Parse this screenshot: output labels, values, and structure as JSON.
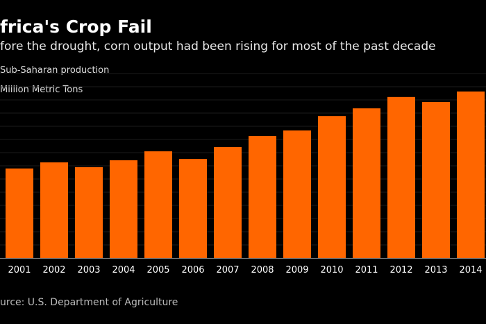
{
  "chart_data": {
    "type": "bar",
    "title": "frica's Crop Fail",
    "subtitle": "fore the drought, corn output had been rising for most of the past decade",
    "series_label": "Sub-Saharan production",
    "ylabel": "Million Metric Tons",
    "source": "urce: U.S. Department of Agriculture",
    "categories": [
      "2001",
      "2002",
      "2003",
      "2004",
      "2005",
      "2006",
      "2007",
      "2008",
      "2009",
      "2010",
      "2011",
      "2012",
      "2013",
      "2014"
    ],
    "values": [
      34.0,
      36.3,
      34.5,
      37.1,
      40.5,
      37.6,
      42.1,
      46.3,
      48.4,
      53.9,
      56.8,
      61.1,
      59.2,
      63.2
    ],
    "ylim": [
      0,
      70
    ],
    "grid": true,
    "bar_color": "#ff6600",
    "background": "#000000"
  }
}
